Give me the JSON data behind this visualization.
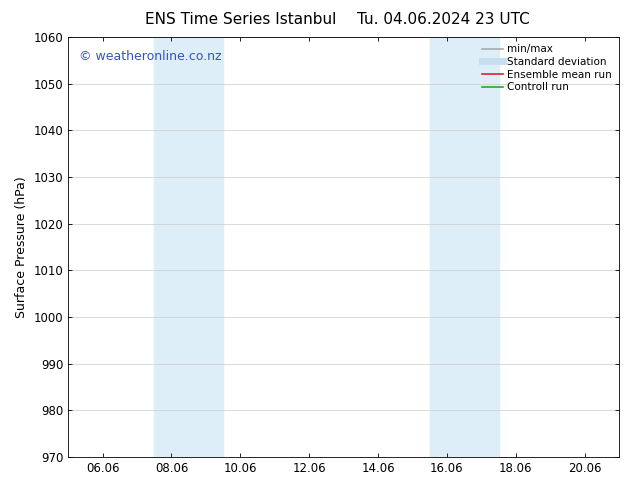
{
  "title_left": "ENS Time Series Istanbul",
  "title_right": "Tu. 04.06.2024 23 UTC",
  "ylabel": "Surface Pressure (hPa)",
  "ylim": [
    970,
    1060
  ],
  "yticks": [
    970,
    980,
    990,
    1000,
    1010,
    1020,
    1030,
    1040,
    1050,
    1060
  ],
  "xtick_labels": [
    "06.06",
    "08.06",
    "10.06",
    "12.06",
    "14.06",
    "16.06",
    "18.06",
    "20.06"
  ],
  "xtick_positions": [
    2,
    4,
    6,
    8,
    10,
    12,
    14,
    16
  ],
  "xlim": [
    1,
    17
  ],
  "shaded_bands": [
    {
      "x_start": 3.5,
      "x_end": 5.5,
      "color": "#ddeef8"
    },
    {
      "x_start": 11.5,
      "x_end": 13.5,
      "color": "#ddeef8"
    }
  ],
  "watermark_text": "© weatheronline.co.nz",
  "watermark_color": "#3355bb",
  "watermark_fontsize": 9,
  "legend_entries": [
    {
      "label": "min/max",
      "color": "#aaaaaa",
      "lw": 1.2,
      "linestyle": "-"
    },
    {
      "label": "Standard deviation",
      "color": "#c8dff0",
      "lw": 5,
      "linestyle": "-"
    },
    {
      "label": "Ensemble mean run",
      "color": "#dd2222",
      "lw": 1.2,
      "linestyle": "-"
    },
    {
      "label": "Controll run",
      "color": "#22aa22",
      "lw": 1.2,
      "linestyle": "-"
    }
  ],
  "bg_color": "#ffffff",
  "plot_bg_color": "#ffffff",
  "grid_color": "#cccccc",
  "title_fontsize": 11,
  "axis_label_fontsize": 9,
  "tick_fontsize": 8.5,
  "legend_fontsize": 7.5
}
